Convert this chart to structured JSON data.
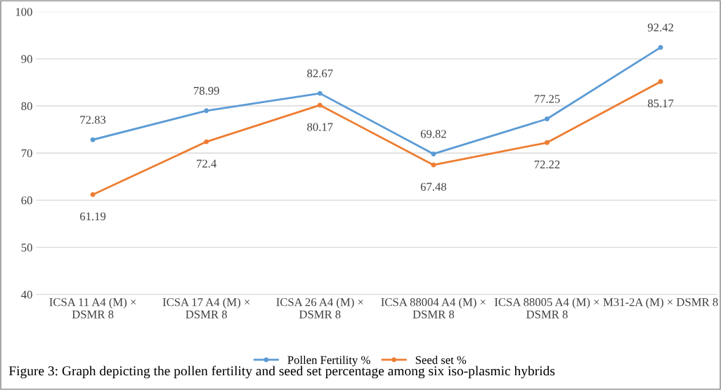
{
  "chart_data": {
    "type": "line",
    "categories": [
      "ICSA 11 A4 (M) × DSMR 8",
      "ICSA 17 A4 (M) × DSMR 8",
      "ICSA 26 A4 (M) × DSMR 8",
      "ICSA 88004 A4 (M) × DSMR 8",
      "ICSA 88005 A4 (M) × DSMR 8",
      "M31-2A (M) × DSMR 8"
    ],
    "series": [
      {
        "name": "Pollen Fertility %",
        "color": "#5b9bd5",
        "values": [
          72.83,
          78.99,
          82.67,
          69.82,
          77.25,
          92.42
        ]
      },
      {
        "name": "Seed set %",
        "color": "#ed7d31",
        "values": [
          61.19,
          72.4,
          80.17,
          67.48,
          72.22,
          85.17
        ]
      }
    ],
    "ylim": [
      40,
      100
    ],
    "yticks": [
      40,
      50,
      60,
      70,
      80,
      90,
      100
    ],
    "grid": "y",
    "legend": "bottom",
    "marker": "circle",
    "line_style": "solid",
    "data_labels": true,
    "annotations": [
      "Figure 3: Graph depicting the pollen fertility and seed set percentage among six iso-plasmic hybrids"
    ]
  }
}
